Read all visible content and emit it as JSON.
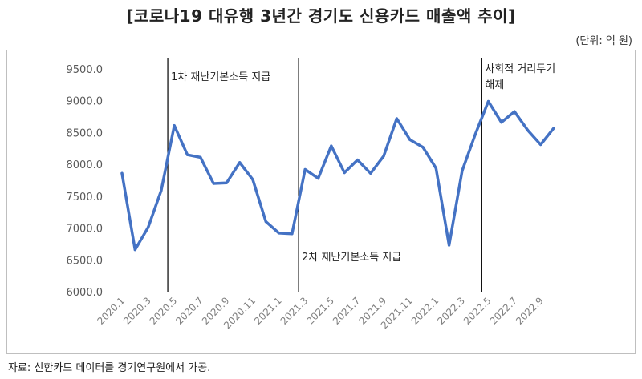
{
  "header": {
    "title": "[코로나19 대유행 3년간 경기도 신용카드 매출액 추이]",
    "unit": "(단위: 억 원)"
  },
  "footer": {
    "source": "자료: 신한카드 데이터를 경기연구원에서 가공."
  },
  "chart_data": {
    "type": "line",
    "title": "[코로나19 대유행 3년간 경기도 신용카드 매출액 추이]",
    "xlabel": "",
    "ylabel": "",
    "unit": "(단위: 억 원)",
    "ylim": [
      6000,
      9500
    ],
    "yticks": [
      "6000.0",
      "6500.0",
      "7000.0",
      "7500.0",
      "8000.0",
      "8500.0",
      "9000.0",
      "9500.0"
    ],
    "x": [
      "2020.1",
      "2020.2",
      "2020.3",
      "2020.4",
      "2020.5",
      "2020.6",
      "2020.7",
      "2020.8",
      "2020.9",
      "2020.10",
      "2020.11",
      "2020.12",
      "2021.1",
      "2021.2",
      "2021.3",
      "2021.4",
      "2021.5",
      "2021.6",
      "2021.7",
      "2021.8",
      "2021.9",
      "2021.10",
      "2021.11",
      "2021.12",
      "2022.1",
      "2022.2",
      "2022.3",
      "2022.4",
      "2022.5",
      "2022.6",
      "2022.7",
      "2022.8",
      "2022.9",
      "2022.10"
    ],
    "xticks_shown": [
      "2020.1",
      "2020.3",
      "2020.5",
      "2020.7",
      "2020.9",
      "2020.11",
      "2021.1",
      "2021.3",
      "2021.5",
      "2021.7",
      "2021.9",
      "2021.11",
      "2022.1",
      "2022.3",
      "2022.5",
      "2022.7",
      "2022.9"
    ],
    "series": [
      {
        "color": "#4472c4",
        "values": [
          7860,
          6660,
          7010,
          7590,
          8610,
          8150,
          8110,
          7700,
          7710,
          8030,
          7760,
          7100,
          6920,
          6910,
          7920,
          7780,
          8290,
          7870,
          8070,
          7860,
          8130,
          8720,
          8390,
          8270,
          7940,
          6730,
          7900,
          8470,
          8990,
          8660,
          8830,
          8540,
          8310,
          8570
        ]
      }
    ],
    "grid": false,
    "annotations": [
      {
        "text": "1차 재난기본소득 지급",
        "at": "2020.4",
        "vline": true
      },
      {
        "text": "2차 재난기본소득 지급",
        "at": "2021.2",
        "vline": true
      },
      {
        "text": "사회적 거리두기 해제",
        "lines": [
          "사회적 거리두기",
          "해제"
        ],
        "at": "2022.4",
        "vline": true
      }
    ]
  }
}
